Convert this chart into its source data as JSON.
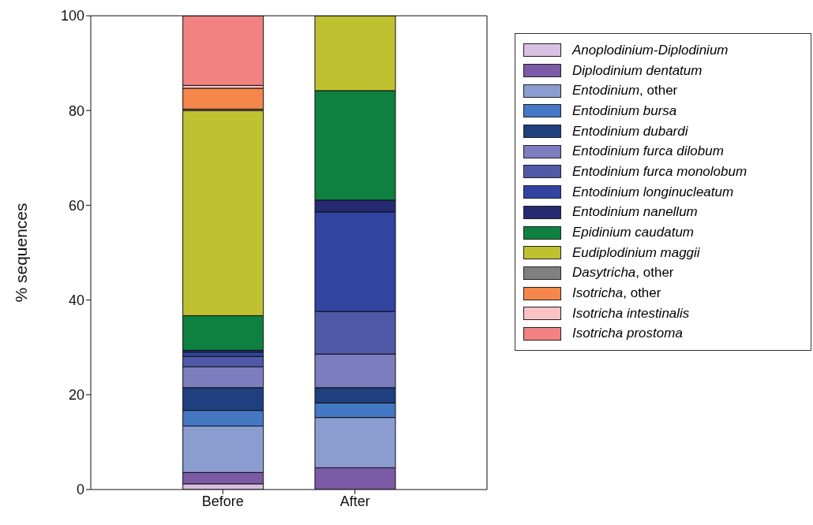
{
  "chart_data": {
    "type": "bar",
    "stacked": true,
    "ylabel": "% sequences",
    "categories": [
      "Before",
      "After"
    ],
    "ylim": [
      0,
      100
    ],
    "yticks": [
      0,
      20,
      40,
      60,
      80,
      100
    ],
    "legend": "top right",
    "series": [
      {
        "name": "Anoplodinium-Diplodinium",
        "color": "#d9bfe0",
        "values": [
          1.2,
          0
        ]
      },
      {
        "name": "Diplodinium dentatum",
        "color": "#7b5aa6",
        "values": [
          2.4,
          4.6
        ]
      },
      {
        "name": "Entodinium, other",
        "color": "#8b9dd0",
        "values": [
          9.8,
          10.6
        ]
      },
      {
        "name": "Entodinium bursa",
        "color": "#4477c4",
        "values": [
          3.3,
          3.1
        ]
      },
      {
        "name": "Entodinium dubardi",
        "color": "#1f3f7f",
        "values": [
          4.8,
          3.2
        ]
      },
      {
        "name": "Entodinium furca dilobum",
        "color": "#7b7dbf",
        "values": [
          4.4,
          7.1
        ]
      },
      {
        "name": "Entodinium furca monolobum",
        "color": "#5059a8",
        "values": [
          2.2,
          9.0
        ]
      },
      {
        "name": "Entodinium longinucleatum",
        "color": "#3244a0",
        "values": [
          0.9,
          21.0
        ]
      },
      {
        "name": "Entodinium nanellum",
        "color": "#262a70",
        "values": [
          0.4,
          2.5
        ]
      },
      {
        "name": "Epidinium caudatum",
        "color": "#0e8140",
        "values": [
          7.3,
          23.1
        ]
      },
      {
        "name": "Eudiplodinium maggii",
        "color": "#bfc131",
        "values": [
          43.3,
          15.8
        ]
      },
      {
        "name": "Dasytricha, other",
        "color": "#808080",
        "values": [
          0.3,
          0
        ]
      },
      {
        "name": "Isotricha, other",
        "color": "#f5874a",
        "values": [
          4.4,
          0
        ]
      },
      {
        "name": "Isotricha intestinalis",
        "color": "#f9c2c4",
        "values": [
          0.6,
          0
        ]
      },
      {
        "name": "Isotricha prostoma",
        "color": "#f28282",
        "values": [
          14.7,
          0
        ]
      }
    ]
  }
}
